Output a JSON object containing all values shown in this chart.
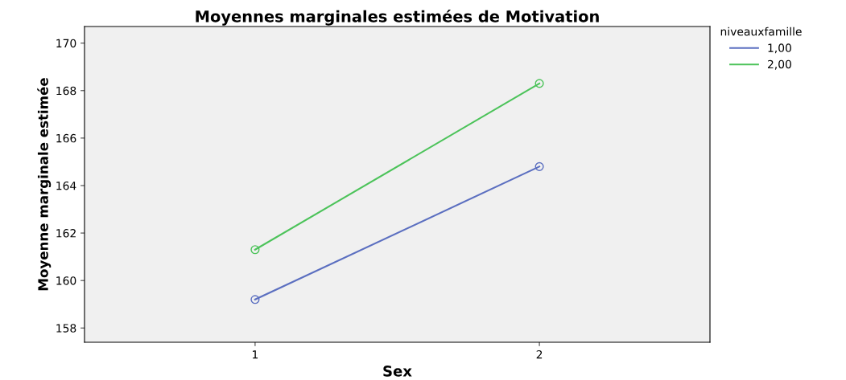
{
  "chart_data": {
    "type": "line",
    "title": "Moyennes marginales estimées de Motivation",
    "xlabel": "Sex",
    "ylabel": "Moyenne marginale estimée",
    "legend_title": "niveauxfamille",
    "categories": [
      "1",
      "2"
    ],
    "series": [
      {
        "name": "1,00",
        "color": "#5b6fc0",
        "values": [
          159.2,
          164.8
        ]
      },
      {
        "name": "2,00",
        "color": "#4cc35a",
        "values": [
          161.3,
          168.3
        ]
      }
    ],
    "ylim": [
      157.4,
      170.7
    ],
    "yticks": [
      158,
      160,
      162,
      164,
      166,
      168,
      170
    ],
    "marker": "circle",
    "legend": "top right",
    "grid": false
  }
}
